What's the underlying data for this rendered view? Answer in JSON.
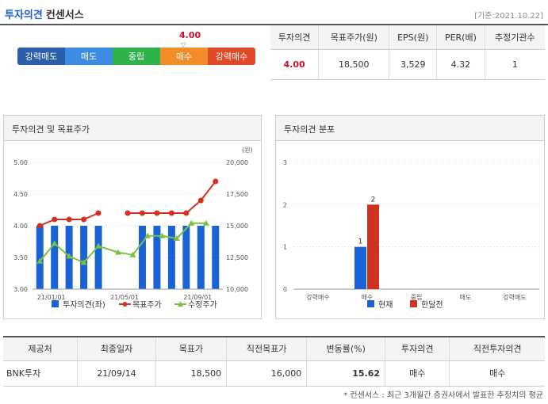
{
  "header": {
    "title": "투자의견",
    "subtitle": "컨센서스",
    "base_date": "[기준:2021.10.22]"
  },
  "scale": {
    "score_label": "4.00",
    "score_value": 4.0,
    "marker": "▽",
    "items": [
      {
        "label": "강력매도",
        "color": "#2a5eab"
      },
      {
        "label": "매도",
        "color": "#3d8be3"
      },
      {
        "label": "중립",
        "color": "#2db34a"
      },
      {
        "label": "매수",
        "color": "#f28c28"
      },
      {
        "label": "강력매수",
        "color": "#e04a26"
      }
    ]
  },
  "consensus": {
    "headers": [
      "투자의견",
      "목표주가(원)",
      "EPS(원)",
      "PER(배)",
      "추정기관수"
    ],
    "values": [
      "4.00",
      "18,500",
      "3,529",
      "4.32",
      "1"
    ]
  },
  "panels": {
    "left_title": "투자의견 및 목표주가",
    "right_title": "투자의견 분포"
  },
  "chart_data": [
    {
      "type": "bar+line",
      "title": "투자의견 및 목표주가",
      "unit_right": "(원)",
      "y_left": {
        "min": 3.0,
        "max": 5.0,
        "ticks": [
          "5.00",
          "4.50",
          "4.00",
          "3.50",
          "3.00"
        ]
      },
      "y_right": {
        "min": 10000,
        "max": 20000,
        "ticks": [
          "20,000",
          "17,500",
          "15,000",
          "12,500",
          "10,000"
        ]
      },
      "x_ticks": [
        "21/01/01",
        "21/05/01",
        "21/09/01"
      ],
      "bars": [
        4,
        4,
        4,
        4,
        4,
        null,
        null,
        4,
        4,
        4,
        4,
        4,
        4
      ],
      "target": [
        15000,
        15500,
        15500,
        15500,
        16000,
        null,
        16000,
        16000,
        16000,
        16000,
        16000,
        17000,
        18500
      ],
      "adj_price": [
        12200,
        13600,
        12600,
        12100,
        13400,
        12900,
        12700,
        14200,
        14200,
        14000,
        15200,
        15200
      ],
      "legend": [
        {
          "label": "투자의견(좌)",
          "color": "#1a63d6"
        },
        {
          "label": "목표주가",
          "color": "#d0321e"
        },
        {
          "label": "수정주가",
          "color": "#7ac143"
        }
      ]
    },
    {
      "type": "bar",
      "title": "투자의견 분포",
      "categories": [
        "강력매수",
        "매수",
        "중립",
        "매도",
        "강력매도"
      ],
      "y_ticks": [
        "3",
        "2",
        "1",
        "0"
      ],
      "ylim": [
        0,
        3
      ],
      "series": [
        {
          "name": "현재",
          "color": "#1a63d6",
          "values": [
            0,
            1,
            0,
            0,
            0
          ]
        },
        {
          "name": "한달전",
          "color": "#d0321e",
          "values": [
            0,
            2,
            0,
            0,
            0
          ]
        }
      ]
    }
  ],
  "history": {
    "headers": [
      "제공처",
      "최종일자",
      "목표가",
      "직전목표가",
      "변동률(%)",
      "투자의견",
      "직전투자의견"
    ],
    "rows": [
      [
        "BNK투자",
        "21/09/14",
        "18,500",
        "16,000",
        "15.62",
        "매수",
        "매수"
      ]
    ]
  },
  "footnote": "* 컨센서스 : 최근 3개월간 증권사에서 발표한 추정치의 평균"
}
